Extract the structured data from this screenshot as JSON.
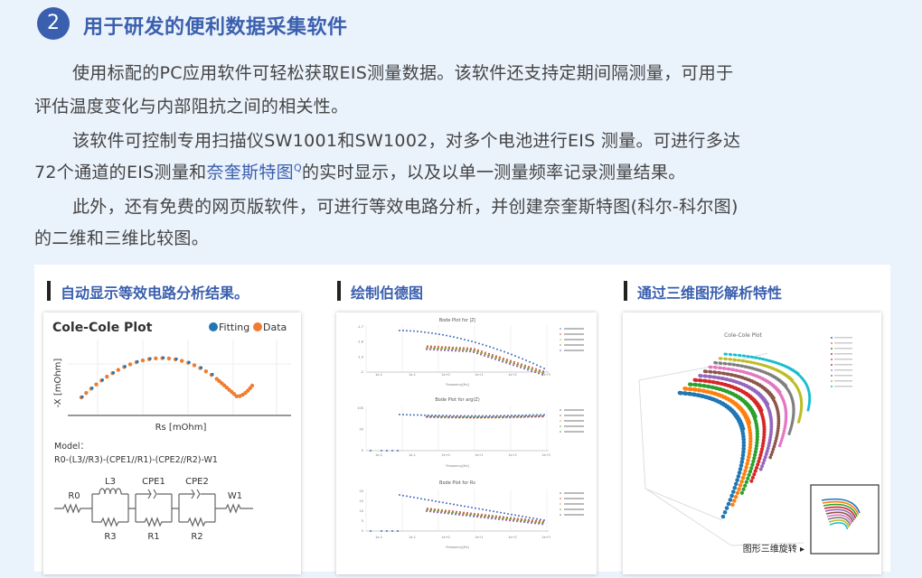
{
  "header": {
    "badge": "2",
    "title": "用于研发的便利数据采集软件"
  },
  "paragraphs": [
    [
      "使用标配的PC应用软件可轻松获取EIS测量数据。该软件还支持定期间隔测量，可用于",
      "评估温度变化与内部阻抗之间的相关性。"
    ],
    [
      "该软件可控制专用扫描仪SW1001和SW1002，对多个电池进行EIS 测量。可进行多达"
    ],
    [
      "此外，还有免费的网页版软件，可进行等效电路分析，并创建奈奎斯特图(科尔-科尔图)",
      "的二维和三维比较图。"
    ]
  ],
  "para2_line2": {
    "before": "72个通道的EIS测量和",
    "link": "奈奎斯特图",
    "link_icon": "Q",
    "after": "的实时显示，以及以单一测量频率记录测量结果。"
  },
  "sections": [
    {
      "heading": "自动显示等效电路分析结果。"
    },
    {
      "heading": "绘制伯德图"
    },
    {
      "heading": "通过三维图形解析特性"
    }
  ],
  "cole_cole": {
    "title": "Cole-Cole Plot",
    "legend": [
      {
        "name": "Fitting",
        "color": "#1f77b4"
      },
      {
        "name": "Data",
        "color": "#ee7d31"
      }
    ],
    "xlabel": "Rs [mOhm]",
    "ylabel": "-X [mOhm]",
    "model_label": "Model：",
    "model": "R0-(L3//R3)-(CPE1//R1)-(CPE2//R2)-W1",
    "circuit": {
      "R0": "R0",
      "L3": "L3",
      "R3": "R3",
      "CPE1": "CPE1",
      "R1": "R1",
      "CPE2": "CPE2",
      "R2": "R2",
      "W1": "W1"
    }
  },
  "bode": {
    "titles": [
      "Bode Plot for |Z|",
      "Bode Plot for arg(Z)",
      "Bode Plot for Rs"
    ],
    "xlabel": "Frequency[Hz]",
    "xticks": [
      "1e-2",
      "1e-1",
      "1e+0",
      "1e+1",
      "1e+2",
      "1e+3"
    ],
    "yticks": [
      [
        "-1.7",
        "-1.8",
        "-1.9",
        "-2"
      ],
      [
        "100",
        "50",
        "0"
      ],
      [
        "20",
        "15",
        "10",
        "5",
        "0"
      ]
    ],
    "colors": [
      "#4a6fc0",
      "#d94a3a",
      "#e0a030",
      "#5aa84a",
      "#8a5ab0"
    ]
  },
  "plot3d": {
    "title": "Cole-Cole Plot",
    "colors": [
      "#1f77b4",
      "#ff7f0e",
      "#2ca02c",
      "#d62728",
      "#9467bd",
      "#8c564b",
      "#e377c2",
      "#7f7f7f",
      "#bcbd22",
      "#17becf"
    ],
    "rotate_label": "图形三维旋转 ▸"
  }
}
